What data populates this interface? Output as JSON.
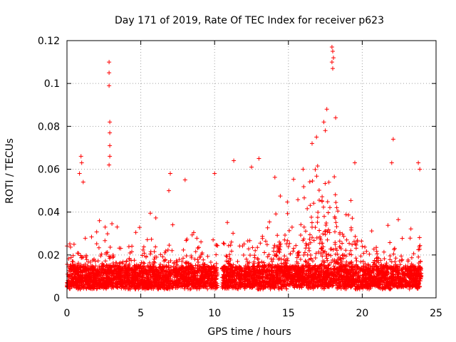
{
  "chart_data": {
    "type": "scatter",
    "title": "Day 171 of 2019, Rate Of TEC Index for receiver p623",
    "xlabel": "GPS time / hours",
    "ylabel": "ROTI / TECUs",
    "xlim": [
      0,
      25
    ],
    "ylim": [
      0,
      0.12
    ],
    "x_ticks": [
      0,
      5,
      10,
      15,
      20,
      25
    ],
    "x_tick_labels": [
      "0",
      "5",
      "10",
      "15",
      "20",
      "25"
    ],
    "y_ticks": [
      0,
      0.02,
      0.04,
      0.06,
      0.08,
      0.1,
      0.12
    ],
    "y_tick_labels": [
      "0",
      "0.02",
      "0.04",
      "0.06",
      "0.08",
      "0.1",
      "0.12"
    ],
    "grid": true,
    "marker": "+",
    "series": [
      {
        "name": "ROTI",
        "color": "#ff0000",
        "data_extent": [
          0,
          24.0
        ],
        "data_gap": [
          10.2,
          10.5
        ],
        "dense_band": [
          0.005,
          0.015
        ],
        "notable_points": [
          {
            "x": 2.85,
            "y": 0.11
          },
          {
            "x": 2.85,
            "y": 0.105
          },
          {
            "x": 2.85,
            "y": 0.099
          },
          {
            "x": 2.9,
            "y": 0.082
          },
          {
            "x": 2.9,
            "y": 0.077
          },
          {
            "x": 2.9,
            "y": 0.071
          },
          {
            "x": 2.9,
            "y": 0.066
          },
          {
            "x": 2.85,
            "y": 0.062
          },
          {
            "x": 0.95,
            "y": 0.066
          },
          {
            "x": 1.0,
            "y": 0.063
          },
          {
            "x": 0.85,
            "y": 0.058
          },
          {
            "x": 1.1,
            "y": 0.054
          },
          {
            "x": 8.0,
            "y": 0.055
          },
          {
            "x": 7.0,
            "y": 0.058
          },
          {
            "x": 6.9,
            "y": 0.05
          },
          {
            "x": 10.0,
            "y": 0.058
          },
          {
            "x": 11.3,
            "y": 0.064
          },
          {
            "x": 13.0,
            "y": 0.065
          },
          {
            "x": 12.5,
            "y": 0.061
          },
          {
            "x": 16.6,
            "y": 0.072
          },
          {
            "x": 16.9,
            "y": 0.075
          },
          {
            "x": 17.5,
            "y": 0.078
          },
          {
            "x": 17.4,
            "y": 0.082
          },
          {
            "x": 17.6,
            "y": 0.088
          },
          {
            "x": 18.2,
            "y": 0.084
          },
          {
            "x": 17.95,
            "y": 0.117
          },
          {
            "x": 18.0,
            "y": 0.115
          },
          {
            "x": 18.05,
            "y": 0.112
          },
          {
            "x": 17.95,
            "y": 0.11
          },
          {
            "x": 18.0,
            "y": 0.107
          },
          {
            "x": 19.5,
            "y": 0.063
          },
          {
            "x": 22.1,
            "y": 0.074
          },
          {
            "x": 22.0,
            "y": 0.063
          },
          {
            "x": 23.8,
            "y": 0.063
          },
          {
            "x": 23.9,
            "y": 0.06
          }
        ]
      }
    ]
  }
}
